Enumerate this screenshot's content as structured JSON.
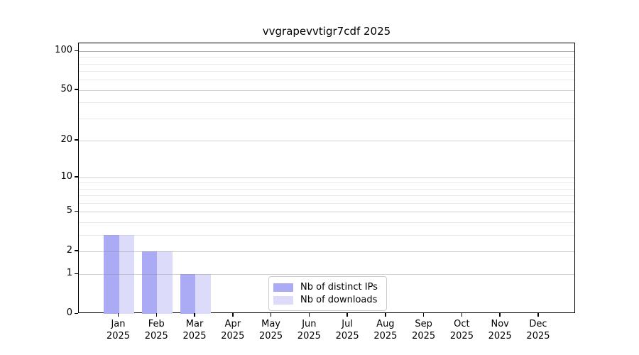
{
  "title": "vvgrapevvtigr7cdf 2025",
  "chart_data": {
    "type": "bar",
    "title": "vvgrapevvtigr7cdf 2025",
    "categories": [
      "Jan",
      "Feb",
      "Mar",
      "Apr",
      "May",
      "Jun",
      "Jul",
      "Aug",
      "Sep",
      "Oct",
      "Nov",
      "Dec"
    ],
    "category_year": "2025",
    "series": [
      {
        "name": "Nb of distinct IPs",
        "color": "#aaaaf5",
        "values": [
          3,
          2,
          1,
          0,
          0,
          0,
          0,
          0,
          0,
          0,
          0,
          0
        ]
      },
      {
        "name": "Nb of downloads",
        "color": "#dcdcfa",
        "values": [
          3,
          2,
          1,
          0,
          0,
          0,
          0,
          0,
          0,
          0,
          0,
          0
        ]
      }
    ],
    "xlabel": "",
    "ylabel": "",
    "y_scale": "log(value+1)",
    "y_ticks": [
      0,
      1,
      2,
      5,
      10,
      20,
      50,
      100
    ],
    "y_minor_ticks": [
      3,
      4,
      6,
      7,
      8,
      9,
      30,
      40,
      60,
      70,
      80,
      90
    ],
    "ylim": [
      0,
      115
    ],
    "grid": "major and minor horizontal gridlines",
    "legend": {
      "position": "lower center",
      "entries": [
        "Nb of distinct IPs",
        "Nb of downloads"
      ]
    }
  }
}
